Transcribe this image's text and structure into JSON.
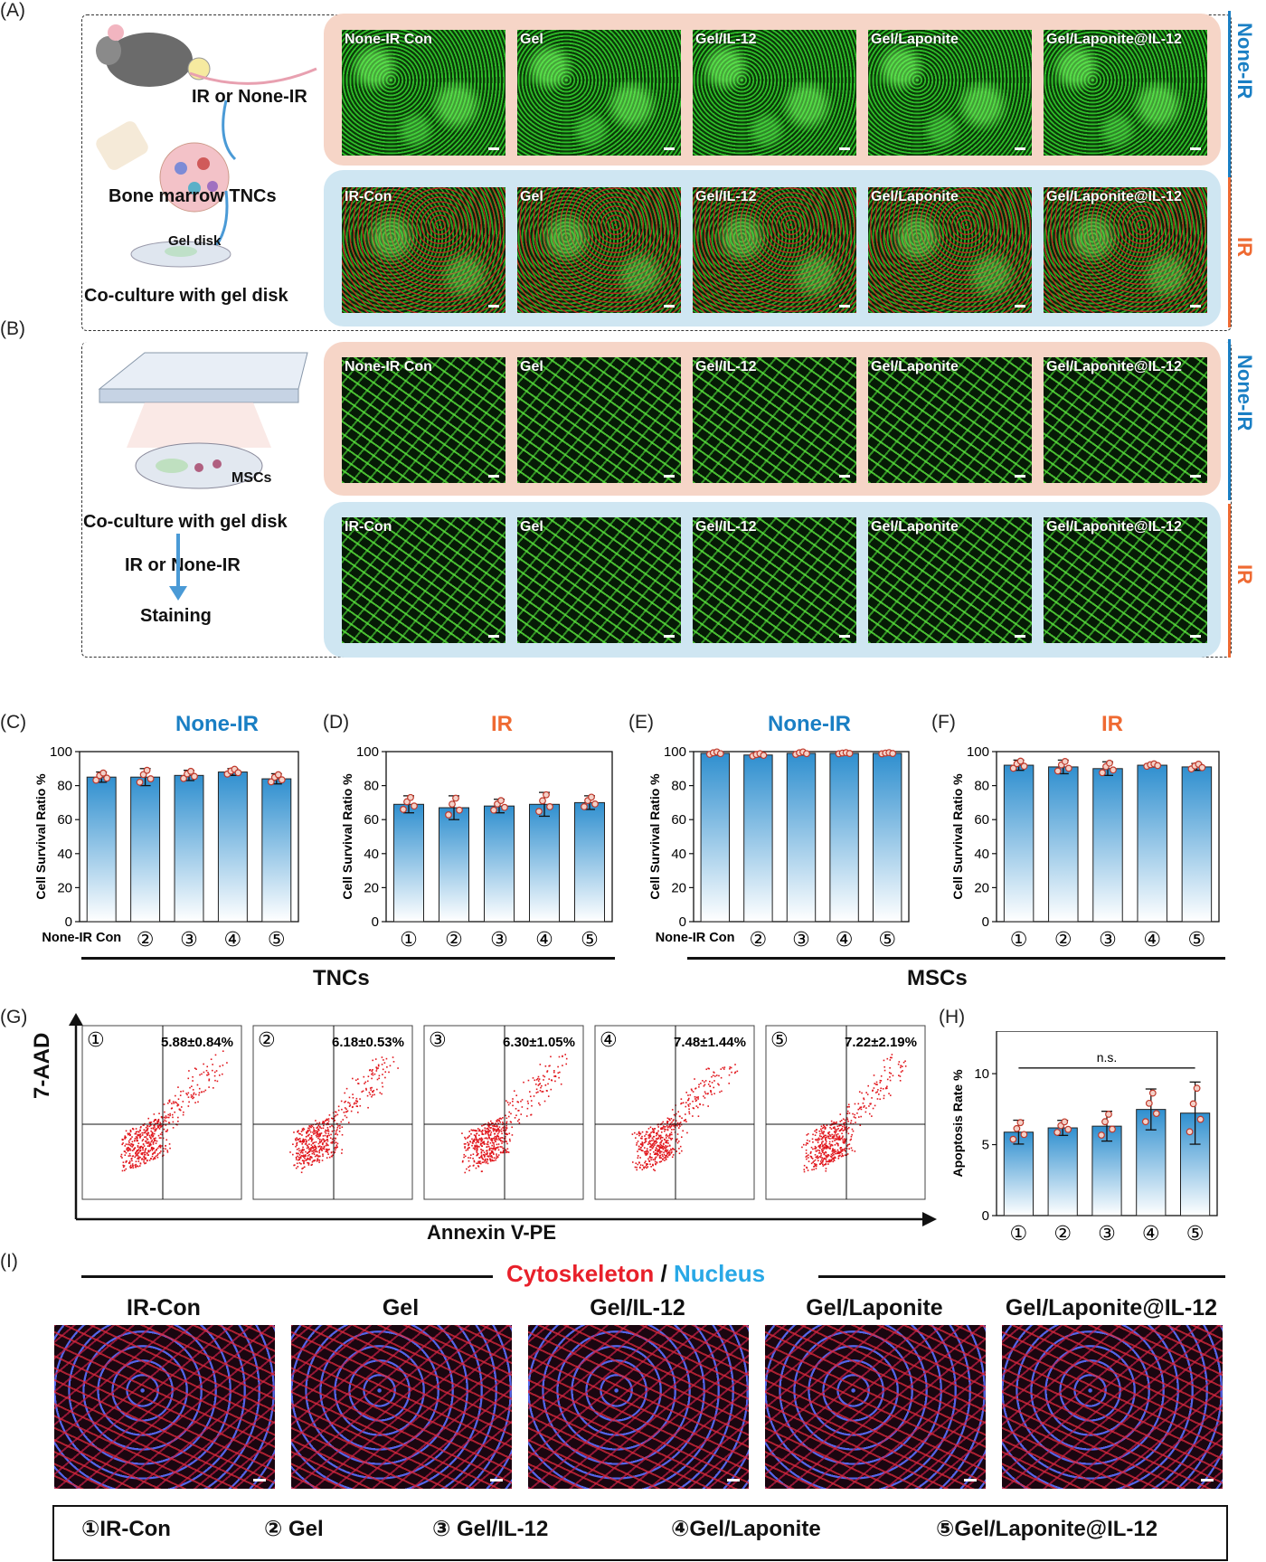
{
  "panel_labels": {
    "a": "(A)",
    "b": "(B)",
    "c": "(C)",
    "d": "(D)",
    "e": "(E)",
    "f": "(F)",
    "g": "(G)",
    "h": "(H)",
    "i": "(I)"
  },
  "schematic_a": {
    "step1": "IR or None-IR",
    "step2": "Bone marrow TNCs",
    "gel_disk": "Gel disk",
    "step3": "Co-culture with gel disk"
  },
  "schematic_b": {
    "mscs": "MSCs",
    "step1": "Co-culture with gel disk",
    "step2": "IR or None-IR",
    "step3": "Staining"
  },
  "side_labels": {
    "none_ir": "None-IR",
    "ir": "IR"
  },
  "colors": {
    "blue": "#1a7fc4",
    "orange": "#ef6a32",
    "pink_band": "#f6d5c7",
    "blue_band": "#cfe6f2",
    "bar_top": "#2f8fcf",
    "dot": "#c0392b"
  },
  "grid_a_none_ir": [
    "None-IR Con",
    "Gel",
    "Gel/IL-12",
    "Gel/Laponite",
    "Gel/Laponite@IL-12"
  ],
  "grid_a_ir": [
    "IR-Con",
    "Gel",
    "Gel/IL-12",
    "Gel/Laponite",
    "Gel/Laponite@IL-12"
  ],
  "grid_b_none_ir": [
    "None-IR Con",
    "Gel",
    "Gel/IL-12",
    "Gel/Laponite",
    "Gel/Laponite@IL-12"
  ],
  "grid_b_ir": [
    "IR-Con",
    "Gel",
    "Gel/IL-12",
    "Gel/Laponite",
    "Gel/Laponite@IL-12"
  ],
  "group_labels": {
    "tncs": "TNCs",
    "mscs": "MSCs"
  },
  "flow": {
    "ylabel": "7-AAD",
    "xlabel": "Annexin V-PE",
    "circles": [
      "①",
      "②",
      "③",
      "④",
      "⑤"
    ],
    "values": [
      "5.88±0.84%",
      "6.18±0.53%",
      "6.30±1.05%",
      "7.48±1.44%",
      "7.22±2.19%"
    ]
  },
  "chart_data": [
    {
      "type": "bar",
      "panel": "C",
      "title": "None-IR",
      "ylabel": "Cell Survival Ratio %",
      "categories": [
        "None-IR Con",
        "②",
        "③",
        "④",
        "⑤"
      ],
      "values": [
        85,
        85,
        86,
        88,
        84
      ],
      "errors": [
        3,
        5,
        3,
        2,
        3
      ],
      "ylim": [
        0,
        100
      ],
      "yticks": [
        0,
        20,
        40,
        60,
        80,
        100
      ]
    },
    {
      "type": "bar",
      "panel": "D",
      "title": "IR",
      "ylabel": "Cell Survival Ratio %",
      "categories": [
        "①",
        "②",
        "③",
        "④",
        "⑤"
      ],
      "values": [
        69,
        67,
        68,
        69,
        70
      ],
      "errors": [
        5,
        7,
        4,
        7,
        4
      ],
      "ylim": [
        0,
        100
      ],
      "yticks": [
        0,
        20,
        40,
        60,
        80,
        100
      ]
    },
    {
      "type": "bar",
      "panel": "E",
      "title": "None-IR",
      "ylabel": "Cell Survival Ratio %",
      "categories": [
        "None-IR Con",
        "②",
        "③",
        "④",
        "⑤"
      ],
      "values": [
        99,
        98,
        99,
        99,
        99
      ],
      "errors": [
        1,
        1,
        1,
        0.5,
        0.5
      ],
      "ylim": [
        0,
        100
      ],
      "yticks": [
        0,
        20,
        40,
        60,
        80,
        100
      ]
    },
    {
      "type": "bar",
      "panel": "F",
      "title": "IR",
      "ylabel": "Cell Survival Ratio %",
      "categories": [
        "①",
        "②",
        "③",
        "④",
        "⑤"
      ],
      "values": [
        92,
        91,
        90,
        92,
        91
      ],
      "errors": [
        3,
        4,
        4,
        1,
        2
      ],
      "ylim": [
        0,
        100
      ],
      "yticks": [
        0,
        20,
        40,
        60,
        80,
        100
      ]
    },
    {
      "type": "bar",
      "panel": "H",
      "ylabel": "Apoptosis Rate %",
      "categories": [
        "①",
        "②",
        "③",
        "④",
        "⑤"
      ],
      "values": [
        5.88,
        6.18,
        6.3,
        7.48,
        7.22
      ],
      "errors": [
        0.84,
        0.53,
        1.05,
        1.44,
        2.19
      ],
      "ylim": [
        0,
        13
      ],
      "yticks": [
        0,
        5,
        10
      ],
      "annotation": "n.s."
    }
  ],
  "panel_i": {
    "title_cyto": "Cytoskeleton",
    "title_sep": "/",
    "title_nuc": "Nucleus",
    "images": [
      "IR-Con",
      "Gel",
      "Gel/IL-12",
      "Gel/Laponite",
      "Gel/Laponite@IL-12"
    ]
  },
  "legend": [
    "①IR-Con",
    "② Gel",
    "③ Gel/IL-12",
    "④Gel/Laponite",
    "⑤Gel/Laponite@IL-12"
  ]
}
